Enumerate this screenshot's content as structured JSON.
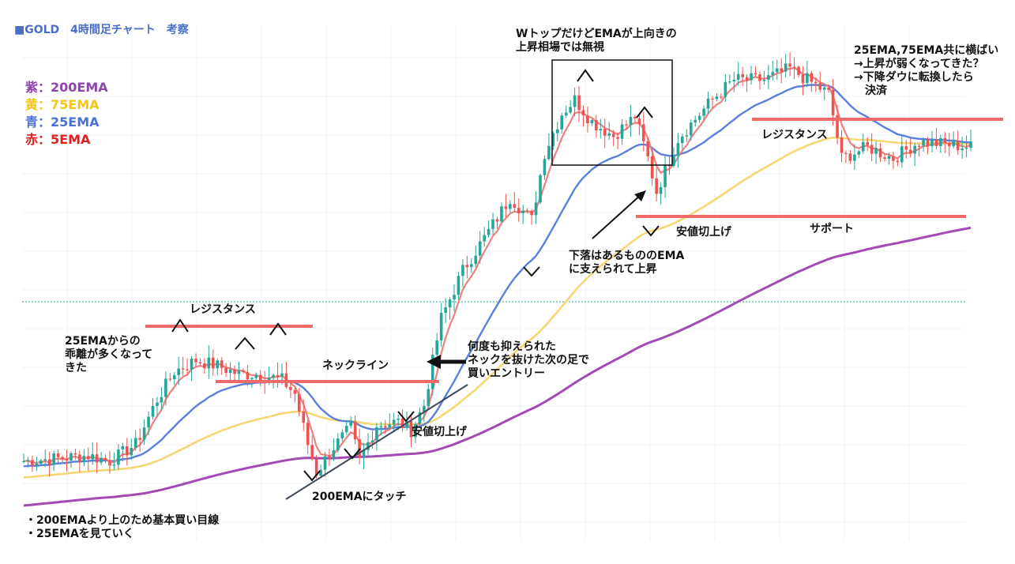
{
  "header": {
    "title": "■GOLD　4時間足チャート　考察"
  },
  "legend": [
    {
      "label": "紫：200EMA",
      "color": "#8e44ad"
    },
    {
      "label": "黄：75EMA",
      "color": "#f5c518"
    },
    {
      "label": "青：25EMA",
      "color": "#4a72d8"
    },
    {
      "label": "赤：5EMA",
      "color": "#e01e1e"
    }
  ],
  "annotations": {
    "resistance_left": "レジスタンス",
    "divergence": "25EMAからの\n乖離が多くなって\nきた",
    "neckline": "ネックライン",
    "touch_200": "200EMAにタッチ",
    "higher_low_1": "安値切上げ",
    "entry": "何度も抑えられた\nネックを抜けた次の足で\n買いエントリー",
    "support_note": "下落はあるもののEMA\nに支えられて上昇",
    "w_top": "WトップだけどEMAが上向きの\n上昇相場では無視",
    "higher_low_2": "安値切上げ",
    "resistance_right": "レジスタンス",
    "support": "サポート",
    "sideways": "25EMA,75EMA共に横ばい\n→上昇が弱くなってきた？\n→下降ダウに転換したら\n　決済",
    "bottom_note": "・200EMAより上のため基本買い目線\n・25EMAを見ていく"
  },
  "colors": {
    "up": "#26a69a",
    "down": "#ef5350",
    "ema200": "#a24bb5",
    "ema75": "#f7d774",
    "ema25": "#5b7fdc",
    "ema5": "#f08080",
    "level": "#f06a6a",
    "trend": "#3b4a5a"
  },
  "chart_data": {
    "type": "candlestick",
    "title": "■GOLD　4時間足チャート　考察",
    "price_path": [
      {
        "i": 0,
        "c": 0.04
      },
      {
        "i": 8,
        "c": 0.05
      },
      {
        "i": 15,
        "c": 0.06
      },
      {
        "i": 20,
        "c": 0.04
      },
      {
        "i": 26,
        "c": 0.1
      },
      {
        "i": 31,
        "c": 0.26
      },
      {
        "i": 35,
        "c": 0.36
      },
      {
        "i": 40,
        "c": 0.4
      },
      {
        "i": 45,
        "c": 0.38
      },
      {
        "i": 50,
        "c": 0.35
      },
      {
        "i": 55,
        "c": 0.35
      },
      {
        "i": 60,
        "c": 0.33
      },
      {
        "i": 63,
        "c": 0.28
      },
      {
        "i": 66,
        "c": 0.1
      },
      {
        "i": 68,
        "c": 0.0
      },
      {
        "i": 72,
        "c": 0.09
      },
      {
        "i": 76,
        "c": 0.16
      },
      {
        "i": 78,
        "c": 0.04
      },
      {
        "i": 82,
        "c": 0.17
      },
      {
        "i": 87,
        "c": 0.18
      },
      {
        "i": 90,
        "c": 0.15
      },
      {
        "i": 93,
        "c": 0.24
      },
      {
        "i": 97,
        "c": 0.55
      },
      {
        "i": 102,
        "c": 0.72
      },
      {
        "i": 108,
        "c": 0.86
      },
      {
        "i": 113,
        "c": 0.98
      },
      {
        "i": 118,
        "c": 0.9
      },
      {
        "i": 121,
        "c": 1.14
      },
      {
        "i": 125,
        "c": 1.28
      },
      {
        "i": 128,
        "c": 1.33
      },
      {
        "i": 132,
        "c": 1.25
      },
      {
        "i": 137,
        "c": 1.2
      },
      {
        "i": 142,
        "c": 1.27
      },
      {
        "i": 145,
        "c": 1.12
      },
      {
        "i": 147,
        "c": 1.0
      },
      {
        "i": 152,
        "c": 1.19
      },
      {
        "i": 160,
        "c": 1.33
      },
      {
        "i": 165,
        "c": 1.4
      },
      {
        "i": 172,
        "c": 1.4
      },
      {
        "i": 178,
        "c": 1.44
      },
      {
        "i": 184,
        "c": 1.38
      },
      {
        "i": 187,
        "c": 1.35
      },
      {
        "i": 190,
        "c": 1.12
      },
      {
        "i": 196,
        "c": 1.16
      },
      {
        "i": 202,
        "c": 1.12
      },
      {
        "i": 208,
        "c": 1.18
      },
      {
        "i": 214,
        "c": 1.17
      },
      {
        "i": 220,
        "c": 1.16
      }
    ],
    "emas": [
      {
        "name": "200EMA",
        "period": 200
      },
      {
        "name": "75EMA",
        "period": 75
      },
      {
        "name": "25EMA",
        "period": 25
      },
      {
        "name": "5EMA",
        "period": 5
      }
    ]
  }
}
